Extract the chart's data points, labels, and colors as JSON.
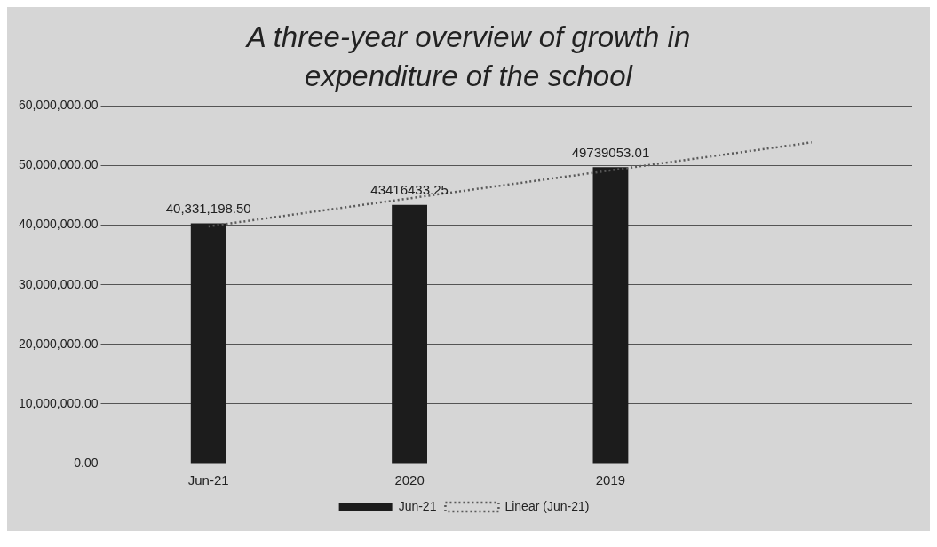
{
  "chart_data": {
    "type": "bar",
    "title": "A three-year overview of growth in expenditure of the school",
    "categories": [
      "Jun-21",
      "2020",
      "2019",
      null
    ],
    "series": [
      {
        "name": "Jun-21",
        "color": "#1c1c1c",
        "values": [
          40331198.5,
          43416433.25,
          49739053.01,
          null
        ],
        "value_labels": [
          "40,331,198.50",
          "43416433.25",
          "49739053.01",
          null
        ]
      },
      {
        "name": "Linear (Jun-21)",
        "type": "line",
        "color": "#5a5a5a",
        "values": [
          39800000,
          44500000,
          49200000,
          53900000
        ],
        "line_style": "dotted",
        "marker": "none"
      }
    ],
    "ylim": [
      0,
      60000000
    ],
    "yticks": [
      {
        "value": 0,
        "label": "0.00"
      },
      {
        "value": 10000000,
        "label": "10,000,000.00"
      },
      {
        "value": 20000000,
        "label": "20,000,000.00"
      },
      {
        "value": 30000000,
        "label": "30,000,000.00"
      },
      {
        "value": 40000000,
        "label": "40,000,000.00"
      },
      {
        "value": 50000000,
        "label": "50,000,000.00"
      },
      {
        "value": 60000000,
        "label": "60,000,000.00"
      }
    ],
    "grid": "y",
    "legend": "bottom"
  }
}
